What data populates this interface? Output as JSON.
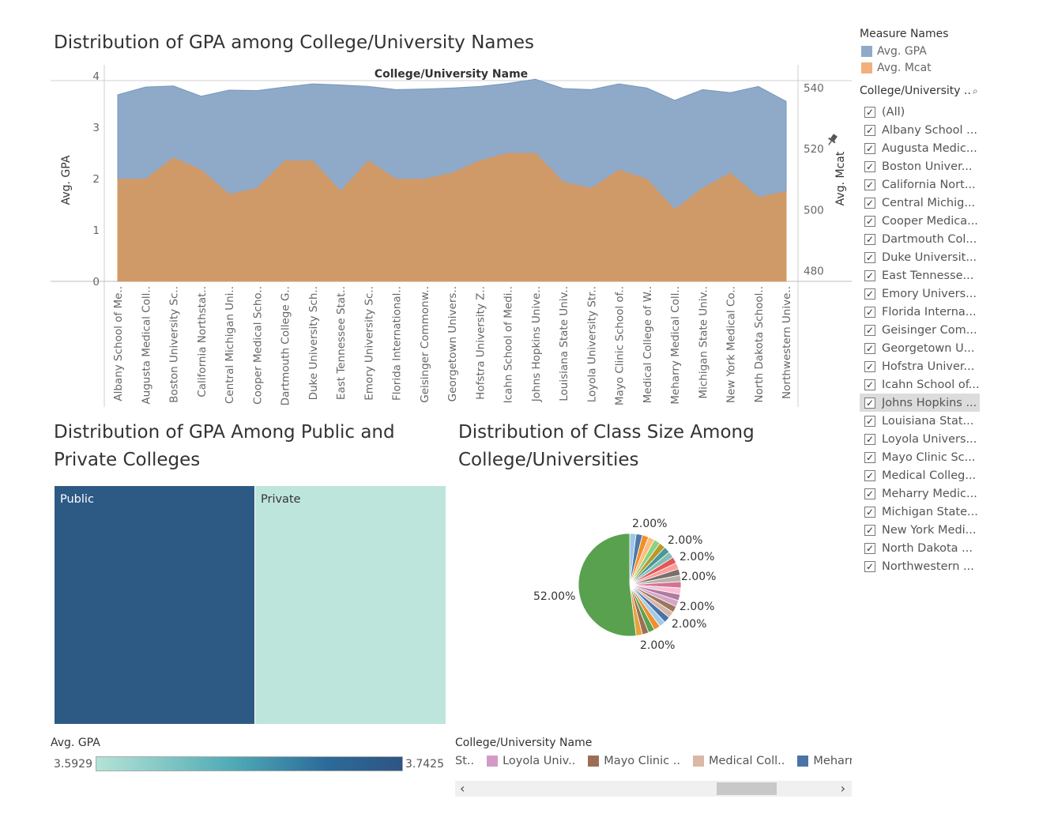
{
  "titles": {
    "area_chart": "Distribution of GPA among College/University Names",
    "treemap": "Distribution of GPA Among Public and Private Colleges",
    "pie": "Distribution of Class Size Among College/Universities"
  },
  "legend": {
    "measure_title": "Measure Names",
    "measures": [
      {
        "label": "Avg. GPA",
        "color": "#8fa9c8"
      },
      {
        "label": "Avg. Mcat",
        "color": "#f2b07e"
      }
    ],
    "filter_title": "College/University ..",
    "search_icon": "search-icon",
    "filter_items": [
      {
        "label": "(All)",
        "checked": true
      },
      {
        "label": "Albany School ...",
        "checked": true
      },
      {
        "label": "Augusta Medic...",
        "checked": true
      },
      {
        "label": "Boston Univer...",
        "checked": true
      },
      {
        "label": "California Nort...",
        "checked": true
      },
      {
        "label": "Central Michig...",
        "checked": true
      },
      {
        "label": "Cooper Medica...",
        "checked": true
      },
      {
        "label": "Dartmouth Col...",
        "checked": true
      },
      {
        "label": "Duke Universit...",
        "checked": true
      },
      {
        "label": "East Tennesse...",
        "checked": true
      },
      {
        "label": "Emory Univers...",
        "checked": true
      },
      {
        "label": "Florida Interna...",
        "checked": true
      },
      {
        "label": "Geisinger Com...",
        "checked": true
      },
      {
        "label": "Georgetown U...",
        "checked": true
      },
      {
        "label": "Hofstra Univer...",
        "checked": true
      },
      {
        "label": "Icahn School of...",
        "checked": true
      },
      {
        "label": "Johns Hopkins ...",
        "checked": true,
        "highlighted": true
      },
      {
        "label": "Louisiana Stat...",
        "checked": true
      },
      {
        "label": "Loyola Univers...",
        "checked": true
      },
      {
        "label": "Mayo Clinic Sc...",
        "checked": true
      },
      {
        "label": "Medical Colleg...",
        "checked": true
      },
      {
        "label": "Meharry Medic...",
        "checked": true
      },
      {
        "label": "Michigan State...",
        "checked": true
      },
      {
        "label": "New York Medi...",
        "checked": true
      },
      {
        "label": "North Dakota ...",
        "checked": true
      },
      {
        "label": "Northwestern ...",
        "checked": true
      }
    ]
  },
  "area_chart": {
    "header": "College/University Name",
    "y_left_label": "Avg. GPA",
    "y_right_label": "Avg. Mcat",
    "pin_icon": "pin-icon",
    "categories": [
      "Albany School of Me..",
      "Augusta Medical Coll..",
      "Boston University Sc..",
      "California Northstat..",
      "Central Michigan Uni..",
      "Cooper Medical Scho..",
      "Dartmouth College G..",
      "Duke University Sch..",
      "East Tennessee Stat..",
      "Emory University Sc..",
      "Florida International..",
      "Geisinger Commonw..",
      "Georgetown Univers..",
      "Hofstra University Z..",
      "Icahn School of Medi..",
      "Johns Hopkins Unive..",
      "Louisiana State Univ..",
      "Loyola University Str..",
      "Mayo Clinic School of..",
      "Medical College of W..",
      "Meharry Medical Coll..",
      "Michigan State Univ..",
      "New York Medical Co..",
      "North Dakota School..",
      "Northwestern Unive.."
    ]
  },
  "treemap": {
    "cells": [
      {
        "label": "Public",
        "value": 3.7425,
        "color": "#2d5a84",
        "text_color": "#ffffff"
      },
      {
        "label": "Private",
        "value": 3.5929,
        "color": "#bde5db",
        "text_color": "#333333"
      }
    ],
    "legend_title": "Avg. GPA",
    "min_label": "3.5929",
    "max_label": "3.7425"
  },
  "pie": {
    "labels": [
      "2.00%",
      "2.00%",
      "2.00%",
      "2.00%",
      "2.00%",
      "2.00%",
      "2.00%",
      "52.00%"
    ],
    "legend_title": "College/University Name",
    "legend_items": [
      {
        "label": "St..",
        "color": "#9b9b9b"
      },
      {
        "label": "Loyola Univ..",
        "color": "#d49ac6"
      },
      {
        "label": "Mayo Clinic ..",
        "color": "#9c6f55"
      },
      {
        "label": "Medical Coll..",
        "color": "#d9b8a5"
      },
      {
        "label": "Meharry Me..",
        "color": "#4a74a8"
      }
    ],
    "scroll_left": "‹",
    "scroll_right": "›"
  },
  "chart_data": [
    {
      "type": "area",
      "title": "Distribution of GPA among College/University Names",
      "xlabel": "College/University Name",
      "categories": [
        "Albany School of Me..",
        "Augusta Medical Coll..",
        "Boston University Sc..",
        "California Northstat..",
        "Central Michigan Uni..",
        "Cooper Medical Scho..",
        "Dartmouth College G..",
        "Duke University Sch..",
        "East Tennessee Stat..",
        "Emory University Sc..",
        "Florida International..",
        "Geisinger Commonw..",
        "Georgetown Univers..",
        "Hofstra University Z..",
        "Icahn School of Medi..",
        "Johns Hopkins Unive..",
        "Louisiana State Univ..",
        "Loyola University Str..",
        "Mayo Clinic School of..",
        "Medical College of W..",
        "Meharry Medical Coll..",
        "Michigan State Univ..",
        "New York Medical Co..",
        "North Dakota School..",
        "Northwestern Unive.."
      ],
      "series": [
        {
          "name": "Avg. GPA",
          "axis": "left",
          "values": [
            3.63,
            3.78,
            3.8,
            3.6,
            3.72,
            3.71,
            3.78,
            3.84,
            3.82,
            3.79,
            3.73,
            3.74,
            3.76,
            3.79,
            3.85,
            3.93,
            3.75,
            3.73,
            3.84,
            3.76,
            3.52,
            3.73,
            3.67,
            3.79,
            3.5
          ]
        },
        {
          "name": "Avg. Mcat",
          "axis": "right",
          "values": [
            510,
            510,
            517,
            513,
            505,
            507,
            516,
            516,
            506,
            516,
            510,
            510,
            512,
            516,
            518.5,
            518.5,
            509,
            507,
            513,
            510,
            500,
            507,
            512,
            504,
            506
          ]
        }
      ],
      "ylim_left": [
        0,
        4.15
      ],
      "yticks_left": [
        0,
        1,
        2,
        3,
        4
      ],
      "ylim_right": [
        476.5,
        546.5
      ],
      "yticks_right": [
        480,
        500,
        520,
        540
      ]
    },
    {
      "type": "treemap",
      "title": "Distribution of GPA Among Public and Private Colleges",
      "categories": [
        "Public",
        "Private"
      ],
      "values": [
        3.7425,
        3.5929
      ]
    },
    {
      "type": "pie",
      "title": "Distribution of Class Size Among College/Universities",
      "values": [
        52,
        2,
        2,
        2,
        2,
        2,
        2,
        2,
        2,
        2,
        2,
        2,
        2,
        2,
        2,
        2,
        2,
        2,
        2,
        2,
        2,
        2,
        2,
        2,
        2
      ],
      "colors": [
        "#59a14f",
        "#9fc5e8",
        "#4e79a7",
        "#f28e2b",
        "#ffbe7d",
        "#8cd17d",
        "#b6992d",
        "#499894",
        "#86bcb6",
        "#e15759",
        "#ff9d9a",
        "#79706e",
        "#bab0ac",
        "#d37295",
        "#fabfd2",
        "#b07aa1",
        "#d4a6c8",
        "#9d7660",
        "#d7b5a6",
        "#4a74a8",
        "#a0cbe8",
        "#f28e2b",
        "#59a14f",
        "#9c6f55",
        "#e8a23a"
      ]
    }
  ]
}
